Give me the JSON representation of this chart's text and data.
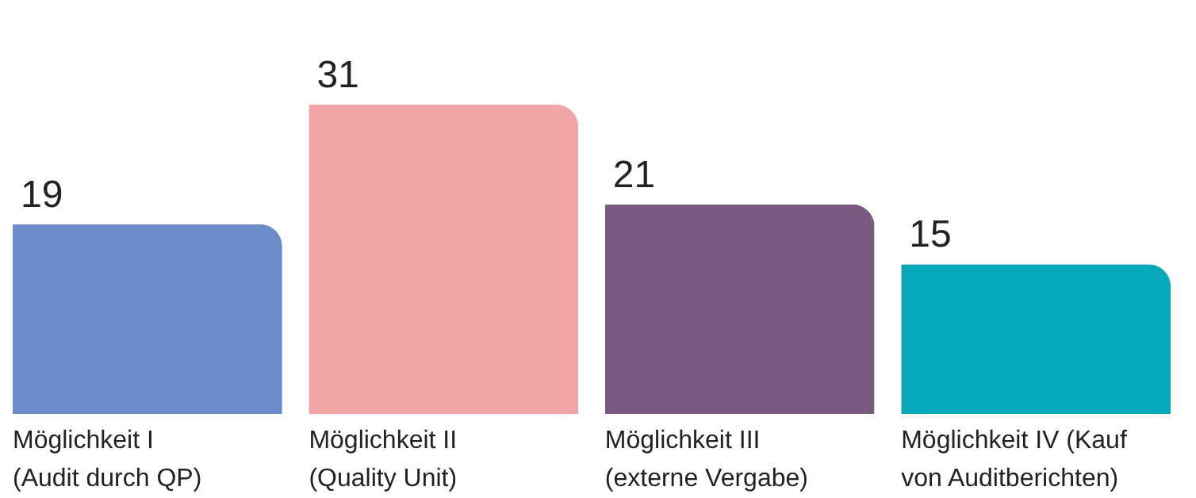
{
  "chart_data": {
    "type": "bar",
    "categories": [
      "Möglichkeit I\n(Audit durch QP)",
      "Möglichkeit II\n(Quality Unit)",
      "Möglichkeit III\n(externe Vergabe)",
      "Möglichkeit IV (Kauf\nvon Auditberichten)"
    ],
    "values": [
      19,
      31,
      21,
      15
    ],
    "colors": [
      "#6a8cc8",
      "#f2a3a5",
      "#795b82",
      "#08a8bb"
    ],
    "data_labels": true
  }
}
